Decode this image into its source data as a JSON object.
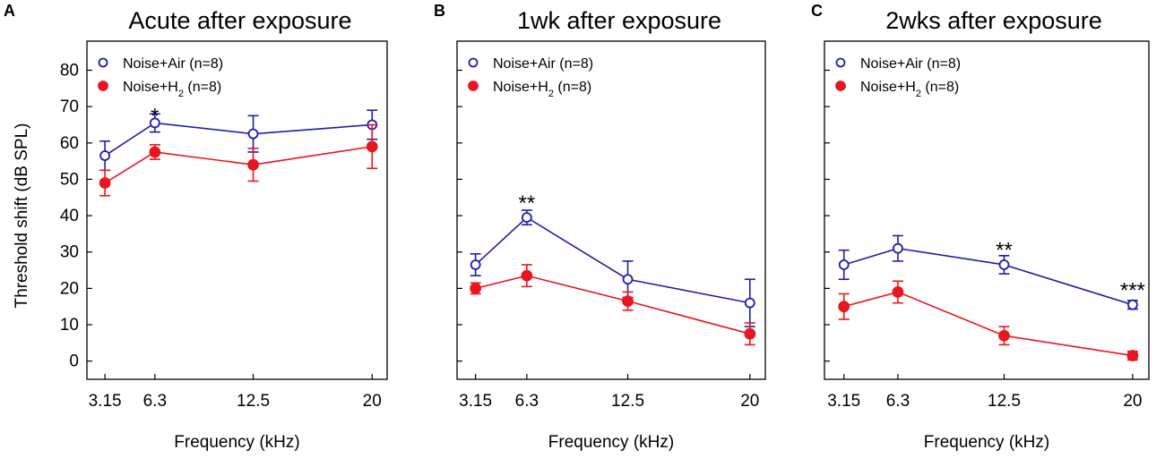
{
  "chart_data": [
    {
      "type": "line",
      "panel_label": "A",
      "title": "Acute after exposure",
      "xlabel": "Frequency (kHz)",
      "ylabel": "Threshold shift (dB SPL)",
      "categories": [
        "3.15",
        "6.3",
        "12.5",
        "20"
      ],
      "x": [
        3.15,
        6.3,
        12.5,
        20
      ],
      "ylim": [
        -5,
        88
      ],
      "yticks": [
        0,
        10,
        20,
        30,
        40,
        50,
        60,
        70,
        80
      ],
      "ytick_labels": [
        "0",
        "10",
        "20",
        "30",
        "40",
        "50",
        "60",
        "70",
        "80"
      ],
      "series": [
        {
          "name": "Noise+Air (n=8)",
          "color": "#1f1fa8",
          "marker": "open-circle",
          "values": [
            56.5,
            65.5,
            62.5,
            65
          ],
          "errors": [
            4,
            2.5,
            5,
            4
          ]
        },
        {
          "name": "Noise+H2 (n=8)",
          "color": "#e8161e",
          "marker": "filled-circle",
          "values": [
            49,
            57.5,
            54,
            59
          ],
          "errors": [
            3.5,
            2,
            4.5,
            6
          ]
        }
      ],
      "annotations": [
        {
          "text": "*",
          "x": 6.3,
          "y": 68
        }
      ]
    },
    {
      "type": "line",
      "panel_label": "B",
      "title": "1wk after exposure",
      "xlabel": "Frequency (kHz)",
      "ylabel": "",
      "categories": [
        "3.15",
        "6.3",
        "12.5",
        "20"
      ],
      "x": [
        3.15,
        6.3,
        12.5,
        20
      ],
      "ylim": [
        -5,
        88
      ],
      "yticks": [
        0,
        10,
        20,
        30,
        40,
        50,
        60,
        70,
        80
      ],
      "ytick_labels": [],
      "series": [
        {
          "name": "Noise+Air (n=8)",
          "color": "#1f1fa8",
          "marker": "open-circle",
          "values": [
            26.5,
            39.5,
            22.5,
            16
          ],
          "errors": [
            3,
            2,
            5,
            6.5
          ]
        },
        {
          "name": "Noise+H2 (n=8)",
          "color": "#e8161e",
          "marker": "filled-circle",
          "values": [
            20,
            23.5,
            16.5,
            7.5
          ],
          "errors": [
            1.5,
            3,
            2.5,
            3
          ]
        }
      ],
      "annotations": [
        {
          "text": "**",
          "x": 6.3,
          "y": 44
        }
      ]
    },
    {
      "type": "line",
      "panel_label": "C",
      "title": "2wks after exposure",
      "xlabel": "Frequency (kHz)",
      "ylabel": "",
      "categories": [
        "3.15",
        "6.3",
        "12.5",
        "20"
      ],
      "x": [
        3.15,
        6.3,
        12.5,
        20
      ],
      "ylim": [
        -5,
        88
      ],
      "yticks": [
        0,
        10,
        20,
        30,
        40,
        50,
        60,
        70,
        80
      ],
      "ytick_labels": [],
      "series": [
        {
          "name": "Noise+Air (n=8)",
          "color": "#1f1fa8",
          "marker": "open-circle",
          "values": [
            26.5,
            31,
            26.5,
            15.5
          ],
          "errors": [
            4,
            3.5,
            2.5,
            1.2
          ]
        },
        {
          "name": "Noise+H2 (n=8)",
          "color": "#e8161e",
          "marker": "filled-circle",
          "values": [
            15,
            19,
            7,
            1.5
          ],
          "errors": [
            3.5,
            3,
            2.5,
            1.2
          ]
        }
      ],
      "annotations": [
        {
          "text": "**",
          "x": 12.5,
          "y": 31
        },
        {
          "text": "***",
          "x": 20,
          "y": 20
        }
      ]
    }
  ]
}
